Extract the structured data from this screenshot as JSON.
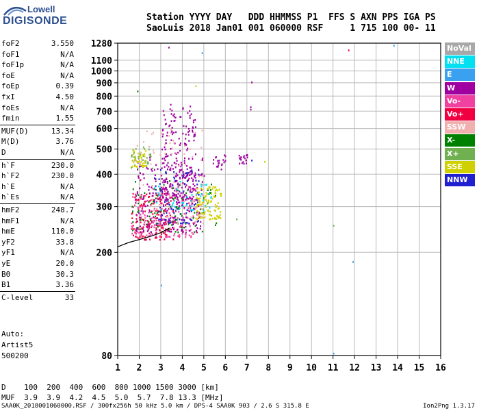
{
  "logo": {
    "line1": "Lowell",
    "line2": "DIGISONDE"
  },
  "header": {
    "line1": "Station YYYY DAY   DDD HHMMSS P1  FFS S AXN PPS IGA PS",
    "line2": "SaoLuis 2018 Jan01 001 060000 RSF     1 715 100 00- 11"
  },
  "params": [
    {
      "label": "foF2",
      "value": "3.550"
    },
    {
      "label": "foF1",
      "value": "N/A"
    },
    {
      "label": "foF1p",
      "value": "N/A"
    },
    {
      "label": "foE",
      "value": "N/A"
    },
    {
      "label": "foEp",
      "value": "0.39"
    },
    {
      "label": "fxI",
      "value": "4.50"
    },
    {
      "label": "foEs",
      "value": "N/A"
    },
    {
      "label": "fmin",
      "value": "1.55"
    },
    {
      "label": "MUF(D)",
      "value": "13.34"
    },
    {
      "label": "M(D)",
      "value": "3.76"
    },
    {
      "label": "D",
      "value": "N/A"
    },
    {
      "label": "h`F",
      "value": "230.0"
    },
    {
      "label": "h`F2",
      "value": "230.0"
    },
    {
      "label": "h`E",
      "value": "N/A"
    },
    {
      "label": "h`Es",
      "value": "N/A"
    },
    {
      "label": "hmF2",
      "value": "248.7"
    },
    {
      "label": "hmF1",
      "value": "N/A"
    },
    {
      "label": "hmE",
      "value": "110.0"
    },
    {
      "label": "yF2",
      "value": "33.8"
    },
    {
      "label": "yF1",
      "value": "N/A"
    },
    {
      "label": "yE",
      "value": "20.0"
    },
    {
      "label": "B0",
      "value": "30.3"
    },
    {
      "label": "B1",
      "value": "3.36"
    },
    {
      "label": "C-level",
      "value": "33"
    }
  ],
  "auto": {
    "line1": "Auto:",
    "line2": "Artist5",
    "line3": "500200"
  },
  "legend": [
    {
      "label": "NoVal",
      "color": "#a8a8a8"
    },
    {
      "label": "NNE",
      "color": "#00e0f0"
    },
    {
      "label": "E",
      "color": "#3aa0f0"
    },
    {
      "label": "W",
      "color": "#a000a0"
    },
    {
      "label": "Vo-",
      "color": "#f040a0"
    },
    {
      "label": "Vo+",
      "color": "#f00040"
    },
    {
      "label": "SSW",
      "color": "#f0b0b0"
    },
    {
      "label": "X-",
      "color": "#008000"
    },
    {
      "label": "X+",
      "color": "#70b050"
    },
    {
      "label": "SSE",
      "color": "#d0d000"
    },
    {
      "label": "NNW",
      "color": "#2020d0"
    }
  ],
  "footer": {
    "line1": "D    100  200  400  600  800 1000 1500 3000 [km]",
    "line2": "MUF  3.9  3.9  4.2  4.5  5.0  5.7  7.8 13.3 [MHz]"
  },
  "bottom": {
    "left": "SAA0K_2018001060000.RSF / 300fx256h 50 kHz 5.0 km / DPS-4 SAA0K 903 / 2.6 S 315.8 E",
    "right": "Ion2Png 1.3.17"
  },
  "chart_data": {
    "type": "scatter",
    "xlabel": "",
    "ylabel": "",
    "xlim": [
      1,
      16
    ],
    "ylim": [
      80,
      1280
    ],
    "x_ticks": [
      1,
      2,
      3,
      4,
      5,
      6,
      7,
      8,
      9,
      10,
      11,
      12,
      13,
      14,
      15,
      16
    ],
    "y_ticks": [
      80,
      200,
      300,
      400,
      500,
      600,
      700,
      800,
      900,
      1000,
      1100,
      1280
    ],
    "y_scale": "log",
    "grid": true,
    "trace": {
      "color": "#000000",
      "x": [
        1.0,
        1.5,
        2.0,
        2.5,
        3.0,
        3.4
      ],
      "y": [
        210,
        218,
        224,
        230,
        238,
        248
      ]
    },
    "clusters": [
      {
        "color": "#f00040",
        "x": [
          1.6,
          3.6
        ],
        "y": [
          225,
          340
        ],
        "n": 160
      },
      {
        "color": "#f040a0",
        "x": [
          1.6,
          4.6
        ],
        "y": [
          230,
          360
        ],
        "n": 180
      },
      {
        "color": "#a000a0",
        "x": [
          1.8,
          5.0
        ],
        "y": [
          240,
          480
        ],
        "n": 220
      },
      {
        "color": "#a000a0",
        "x": [
          3.0,
          4.6
        ],
        "y": [
          320,
          750
        ],
        "n": 220
      },
      {
        "color": "#2020d0",
        "x": [
          2.6,
          4.8
        ],
        "y": [
          260,
          420
        ],
        "n": 90
      },
      {
        "color": "#008000",
        "x": [
          1.6,
          5.6
        ],
        "y": [
          240,
          380
        ],
        "n": 90
      },
      {
        "color": "#70b050",
        "x": [
          1.6,
          2.6
        ],
        "y": [
          420,
          520
        ],
        "n": 40
      },
      {
        "color": "#d0d000",
        "x": [
          4.6,
          5.8
        ],
        "y": [
          270,
          360
        ],
        "n": 110
      },
      {
        "color": "#d0d000",
        "x": [
          1.6,
          2.3
        ],
        "y": [
          430,
          500
        ],
        "n": 40
      },
      {
        "color": "#f0b0b0",
        "x": [
          1.8,
          5.0
        ],
        "y": [
          260,
          600
        ],
        "n": 90
      },
      {
        "color": "#00e0f0",
        "x": [
          2.6,
          5.4
        ],
        "y": [
          290,
          380
        ],
        "n": 40
      },
      {
        "color": "#a000a0",
        "x": [
          6.6,
          7.0
        ],
        "y": [
          440,
          480
        ],
        "n": 20
      },
      {
        "color": "#a000a0",
        "x": [
          5.4,
          6.0
        ],
        "y": [
          420,
          480
        ],
        "n": 20
      }
    ],
    "outliers": [
      {
        "x": 3.35,
        "y": 1240,
        "color": "#a000a0"
      },
      {
        "x": 4.9,
        "y": 1180,
        "color": "#3aa0f0"
      },
      {
        "x": 11.7,
        "y": 1210,
        "color": "#f00040"
      },
      {
        "x": 13.8,
        "y": 1260,
        "color": "#3aa0f0"
      },
      {
        "x": 7.2,
        "y": 910,
        "color": "#a000a0"
      },
      {
        "x": 7.15,
        "y": 730,
        "color": "#a000a0"
      },
      {
        "x": 7.15,
        "y": 715,
        "color": "#a000a0"
      },
      {
        "x": 11.9,
        "y": 185,
        "color": "#3aa0f0"
      },
      {
        "x": 11.0,
        "y": 82,
        "color": "#3aa0f0"
      },
      {
        "x": 11.0,
        "y": 255,
        "color": "#70b050"
      },
      {
        "x": 7.8,
        "y": 450,
        "color": "#d0d000"
      },
      {
        "x": 6.5,
        "y": 270,
        "color": "#70b050"
      },
      {
        "x": 4.6,
        "y": 880,
        "color": "#d0d000"
      },
      {
        "x": 1.9,
        "y": 840,
        "color": "#008000"
      },
      {
        "x": 3.0,
        "y": 150,
        "color": "#3aa0f0"
      },
      {
        "x": 7.2,
        "y": 455,
        "color": "#2020d0"
      }
    ]
  }
}
